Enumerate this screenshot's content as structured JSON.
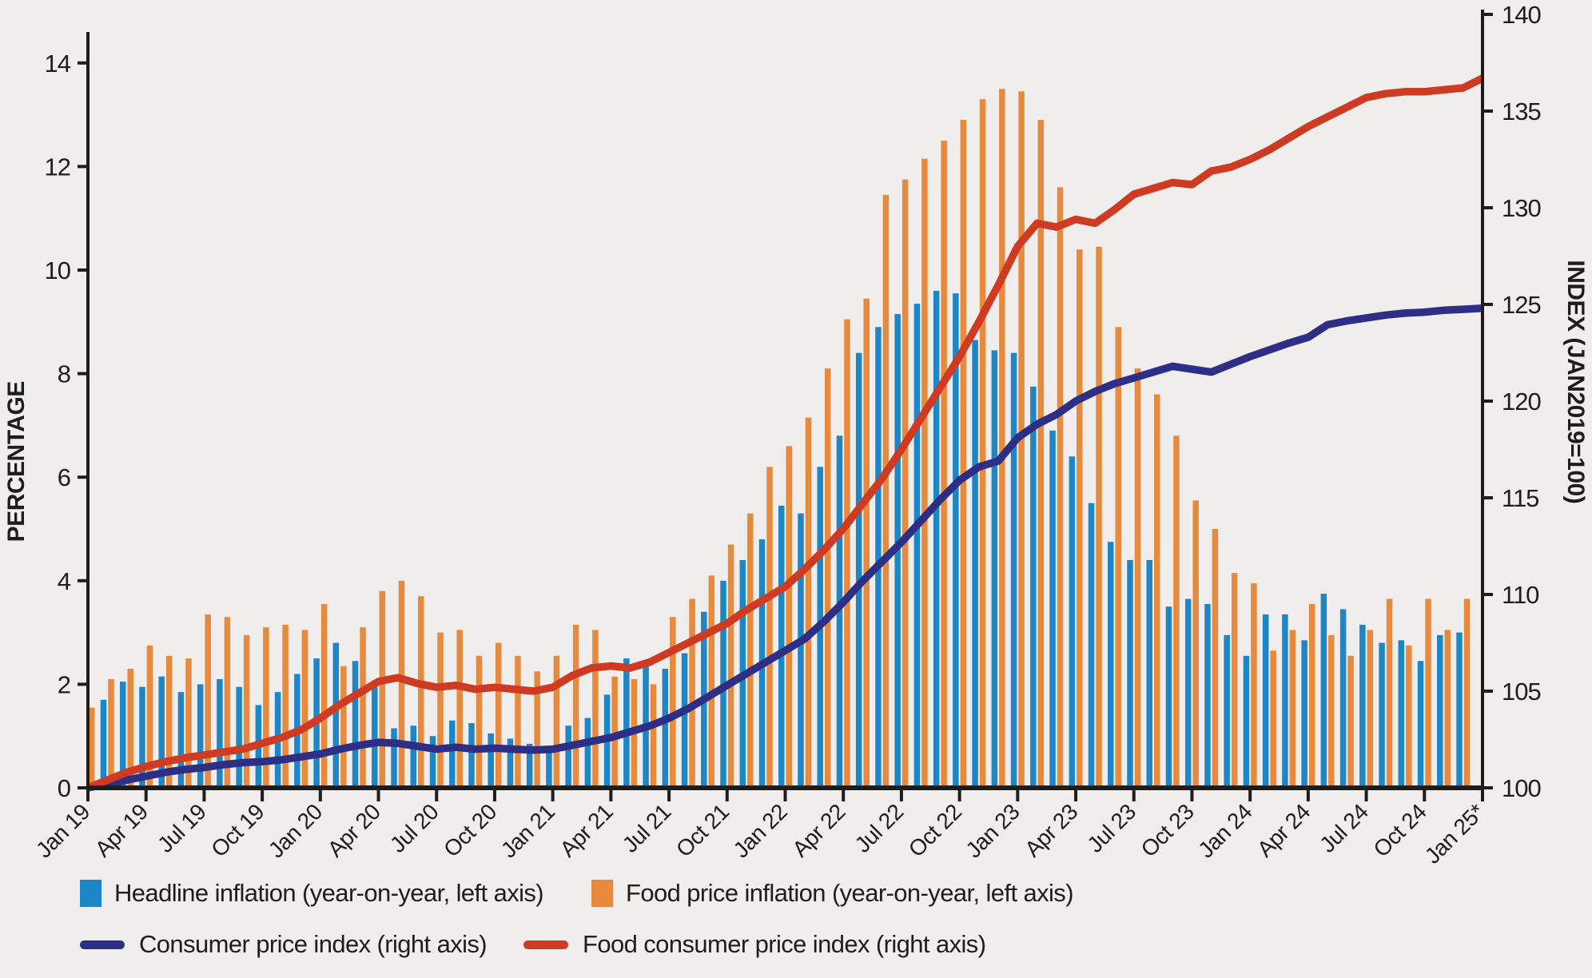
{
  "colors": {
    "background": "#efeeec",
    "headline_bar": "#1e86c5",
    "food_bar": "#e78a3d",
    "cpi_line": "#2d2f87",
    "food_cpi_line": "#cf3a23",
    "axis": "#1d1d1b",
    "text": "#1d1d1b"
  },
  "axes": {
    "left_title": "PERCENTAGE",
    "right_title": "INDEX (JAN2019=100)",
    "left_ticks": [
      0,
      2,
      4,
      6,
      8,
      10,
      12,
      14
    ],
    "right_ticks": [
      100,
      105,
      110,
      115,
      120,
      125,
      130,
      135,
      140
    ],
    "x_tick_labels": [
      "Jan 19",
      "Apr 19",
      "Jul 19",
      "Oct 19",
      "Jan 20",
      "Apr 20",
      "Jul 20",
      "Oct 20",
      "Jan 21",
      "Apr 21",
      "Jul 21",
      "Oct 21",
      "Jan 22",
      "Apr 22",
      "Jul 22",
      "Oct 22",
      "Jan 23",
      "Apr 23",
      "Jul 23",
      "Oct 23",
      "Jan 24",
      "Apr 24",
      "Jul 24",
      "Oct 24",
      "Jan 25*"
    ]
  },
  "legend": {
    "items": [
      {
        "label": "Headline inflation (year-on-year, left axis)",
        "type": "square",
        "color": "#1e86c5"
      },
      {
        "label": "Food price inflation (year-on-year, left axis)",
        "type": "square",
        "color": "#e78a3d"
      },
      {
        "label": "Consumer price index (right axis)",
        "type": "line",
        "color": "#2d2f87"
      },
      {
        "label": "Food consumer price index (right axis)",
        "type": "line",
        "color": "#cf3a23"
      }
    ]
  },
  "chart_data": {
    "type": "bar",
    "subtype": "bars-plus-lines-dual-axis",
    "title": "",
    "xlabel": "",
    "ylabel_left": "PERCENTAGE",
    "ylabel_right": "INDEX (JAN2019=100)",
    "ylim_left": [
      0,
      14.6
    ],
    "ylim_right": [
      100,
      140
    ],
    "grid": false,
    "legend_position": "bottom",
    "months": [
      "Jan 19",
      "Feb 19",
      "Mar 19",
      "Apr 19",
      "May 19",
      "Jun 19",
      "Jul 19",
      "Aug 19",
      "Sep 19",
      "Oct 19",
      "Nov 19",
      "Dec 19",
      "Jan 20",
      "Feb 20",
      "Mar 20",
      "Apr 20",
      "May 20",
      "Jun 20",
      "Jul 20",
      "Aug 20",
      "Sep 20",
      "Oct 20",
      "Nov 20",
      "Dec 20",
      "Jan 21",
      "Feb 21",
      "Mar 21",
      "Apr 21",
      "May 21",
      "Jun 21",
      "Jul 21",
      "Aug 21",
      "Sep 21",
      "Oct 21",
      "Nov 21",
      "Dec 21",
      "Jan 22",
      "Feb 22",
      "Mar 22",
      "Apr 22",
      "May 22",
      "Jun 22",
      "Jul 22",
      "Aug 22",
      "Sep 22",
      "Oct 22",
      "Nov 22",
      "Dec 22",
      "Jan 23",
      "Feb 23",
      "Mar 23",
      "Apr 23",
      "May 23",
      "Jun 23",
      "Jul 23",
      "Aug 23",
      "Sep 23",
      "Oct 23",
      "Nov 23",
      "Dec 23",
      "Jan 24",
      "Feb 24",
      "Mar 24",
      "Apr 24",
      "May 24",
      "Jun 24",
      "Jul 24",
      "Aug 24",
      "Sep 24",
      "Oct 24",
      "Nov 24",
      "Dec 24",
      "Jan 25"
    ],
    "series": [
      {
        "name": "Headline inflation (year-on-year, left axis)",
        "type": "bar",
        "axis": "left",
        "color": "#1e86c5",
        "values": [
          null,
          1.7,
          2.05,
          1.95,
          2.15,
          1.85,
          2.0,
          2.1,
          1.95,
          1.6,
          1.85,
          2.2,
          2.5,
          2.8,
          2.45,
          1.95,
          1.15,
          1.2,
          1.0,
          1.3,
          1.25,
          1.05,
          0.95,
          0.85,
          0.7,
          1.2,
          1.35,
          1.8,
          2.5,
          2.35,
          2.3,
          2.6,
          3.4,
          4.0,
          4.4,
          4.8,
          5.45,
          5.3,
          6.2,
          6.8,
          8.4,
          8.9,
          9.15,
          9.35,
          9.6,
          9.55,
          8.65,
          8.45,
          8.4,
          7.75,
          6.9,
          6.4,
          5.5,
          4.75,
          4.4,
          4.4,
          3.5,
          3.65,
          3.55,
          2.95,
          2.55,
          3.35,
          3.35,
          2.85,
          3.75,
          3.45,
          3.15,
          2.8,
          2.85,
          2.45,
          2.95,
          3.0,
          null
        ]
      },
      {
        "name": "Food price inflation (year-on-year, left axis)",
        "type": "bar",
        "axis": "left",
        "color": "#e78a3d",
        "values": [
          1.55,
          2.1,
          2.3,
          2.75,
          2.55,
          2.5,
          3.35,
          3.3,
          2.95,
          3.1,
          3.15,
          3.05,
          3.55,
          2.35,
          3.1,
          3.8,
          4.0,
          3.7,
          3.0,
          3.05,
          2.55,
          2.8,
          2.55,
          2.25,
          2.55,
          3.15,
          3.05,
          2.15,
          2.1,
          2.0,
          3.3,
          3.65,
          4.1,
          4.7,
          5.3,
          6.2,
          6.6,
          7.15,
          8.1,
          9.05,
          9.45,
          11.45,
          11.75,
          12.15,
          12.5,
          12.9,
          13.3,
          13.5,
          13.45,
          12.9,
          11.6,
          10.4,
          10.45,
          8.9,
          8.1,
          7.6,
          6.8,
          5.55,
          5.0,
          4.15,
          3.95,
          2.65,
          3.05,
          3.55,
          2.95,
          2.55,
          3.05,
          3.65,
          2.75,
          3.65,
          3.05,
          3.65,
          null
        ]
      },
      {
        "name": "Consumer price index (right axis)",
        "type": "line",
        "axis": "right",
        "color": "#2d2f87",
        "values": [
          100,
          100.2,
          100.4,
          100.6,
          100.8,
          100.95,
          101.05,
          101.2,
          101.3,
          101.35,
          101.45,
          101.6,
          101.75,
          102.0,
          102.2,
          102.35,
          102.3,
          102.15,
          102.0,
          102.1,
          102.0,
          102.05,
          102.0,
          101.95,
          102.0,
          102.2,
          102.4,
          102.6,
          102.9,
          103.2,
          103.6,
          104.1,
          104.7,
          105.3,
          105.9,
          106.5,
          107.1,
          107.7,
          108.6,
          109.6,
          110.7,
          111.7,
          112.7,
          113.8,
          114.9,
          115.9,
          116.6,
          116.9,
          118.1,
          118.8,
          119.3,
          120.0,
          120.5,
          120.9,
          121.2,
          121.5,
          121.8,
          121.65,
          121.5,
          121.9,
          122.3,
          122.65,
          123.0,
          123.3,
          123.95,
          124.15,
          124.3,
          124.45,
          124.55,
          124.6,
          124.7,
          124.75,
          124.8
        ]
      },
      {
        "name": "Food consumer price index (right axis)",
        "type": "line",
        "axis": "right",
        "color": "#cf3a23",
        "values": [
          100,
          100.4,
          100.8,
          101.1,
          101.35,
          101.55,
          101.7,
          101.85,
          102.0,
          102.3,
          102.6,
          103.0,
          103.6,
          104.3,
          104.9,
          105.5,
          105.7,
          105.4,
          105.2,
          105.3,
          105.1,
          105.2,
          105.1,
          105.0,
          105.2,
          105.8,
          106.2,
          106.3,
          106.2,
          106.5,
          107.0,
          107.5,
          108.0,
          108.5,
          109.2,
          109.8,
          110.4,
          111.3,
          112.3,
          113.4,
          114.7,
          116.0,
          117.5,
          119.1,
          120.7,
          122.3,
          124.1,
          126.0,
          128.0,
          129.2,
          129.0,
          129.4,
          129.2,
          129.9,
          130.7,
          131.0,
          131.3,
          131.2,
          131.9,
          132.1,
          132.5,
          133.0,
          133.6,
          134.2,
          134.7,
          135.2,
          135.7,
          135.9,
          136.0,
          136.0,
          136.1,
          136.2,
          136.7
        ]
      }
    ]
  }
}
